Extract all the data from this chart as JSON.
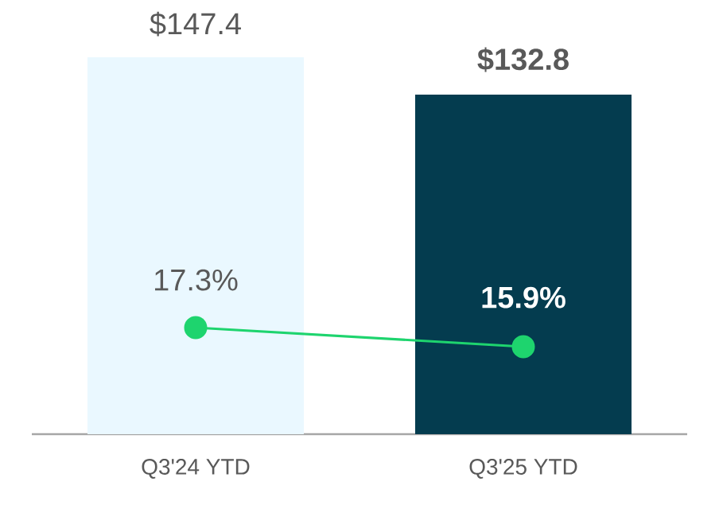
{
  "chart_data": {
    "type": "bar",
    "categories": [
      "Q3'24 YTD",
      "Q3'25 YTD"
    ],
    "series": [
      {
        "colors": [
          "#eaf8ff",
          "#043c4f"
        ],
        "values": [
          147.4,
          132.8
        ],
        "value_labels": [
          "$147.4",
          "$132.8"
        ]
      },
      {
        "type": "line",
        "axis": "y2",
        "color": "#1ed46e",
        "marker": "circle",
        "values": [
          17.3,
          15.9
        ],
        "value_labels": [
          "17.3%",
          "15.9%"
        ]
      }
    ],
    "tick_labels": "x"
  }
}
